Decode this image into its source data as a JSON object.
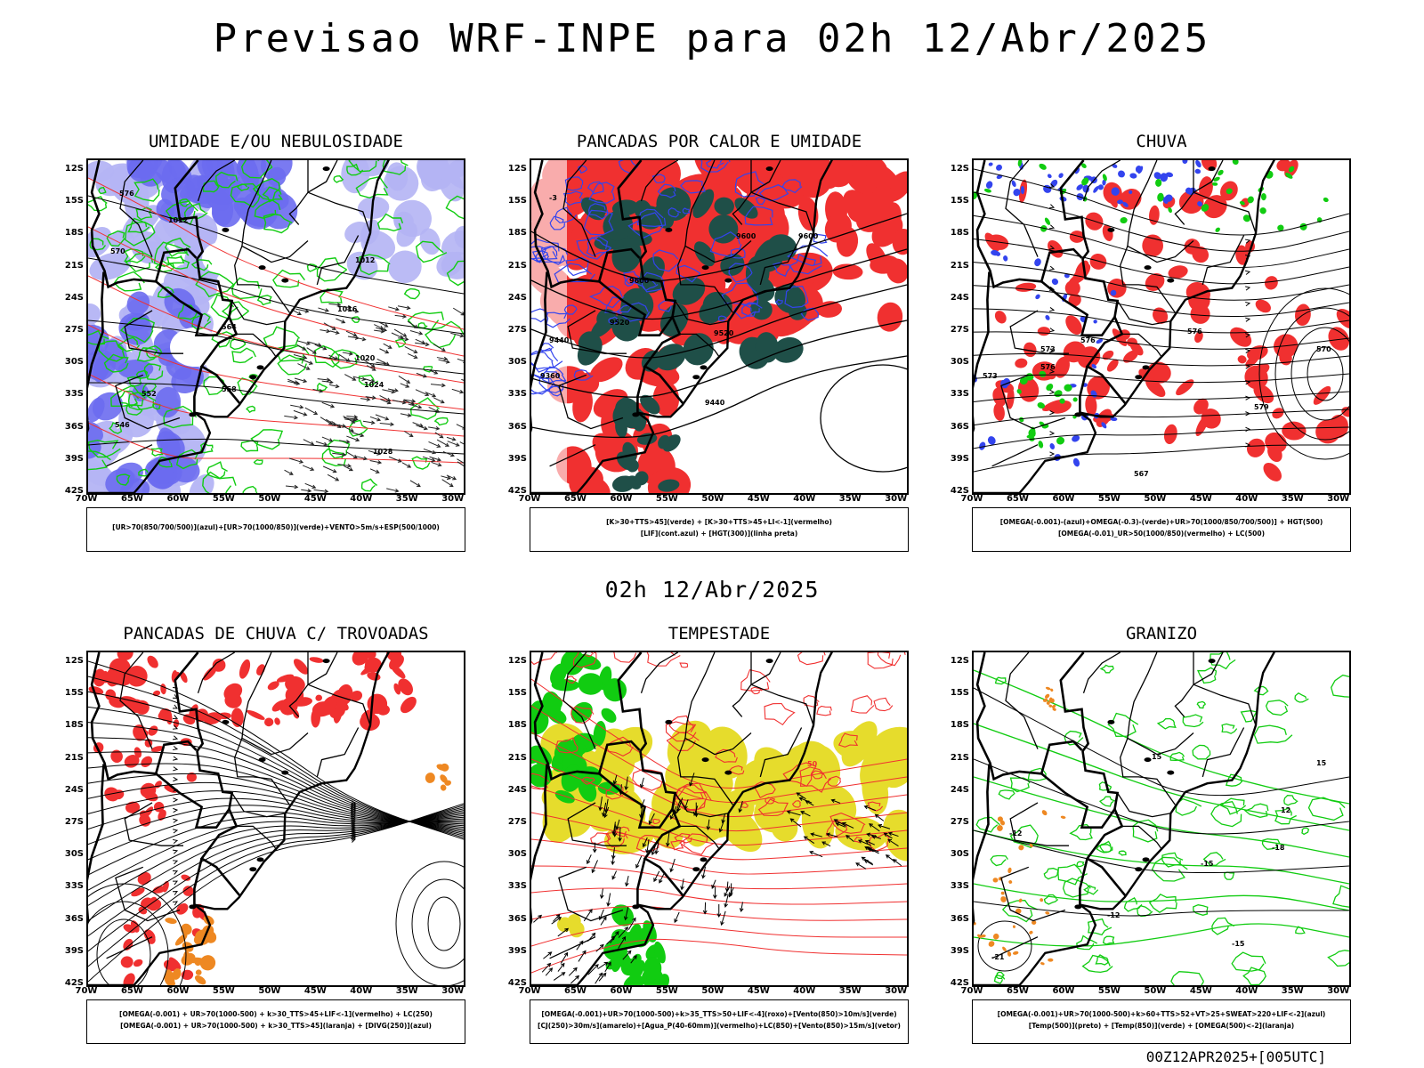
{
  "header": {
    "title": "Previsao WRF-INPE  para 02h 12/Abr/2025"
  },
  "mid_title": "02h 12/Abr/2025",
  "footer": "00Z12APR2025+[005UTC]",
  "axes": {
    "lat_labels": [
      "12S",
      "15S",
      "18S",
      "21S",
      "24S",
      "27S",
      "30S",
      "33S",
      "36S",
      "39S",
      "42S"
    ],
    "lon_labels": [
      "70W",
      "65W",
      "60W",
      "55W",
      "50W",
      "45W",
      "40W",
      "35W",
      "30W"
    ]
  },
  "panels": [
    {
      "id": "umidade",
      "title": "UMIDADE E/OU NEBULOSIDADE",
      "legend": [
        "[UR>70(850/700/500)](azul)+[UR>70(1000/850)](verde)+VENTO>5m/s+ESP(500/1000)"
      ],
      "contour_labels": [
        "1012",
        "1012",
        "1016",
        "1020",
        "1024",
        "1028",
        "576",
        "570",
        "564",
        "558",
        "552",
        "546"
      ]
    },
    {
      "id": "pancadas-calor",
      "title": "PANCADAS POR CALOR E UMIDADE",
      "legend": [
        "[K>30+TTS>45](verde) + [K>30+TTS>45+LI<-1](vermelho)",
        "[LIF](cont.azul) + [HGT(300)](linha preta)"
      ],
      "contour_labels": [
        "9600",
        "9600",
        "9600",
        "9520",
        "9520",
        "9440",
        "9440",
        "9360",
        "-3"
      ]
    },
    {
      "id": "chuva",
      "title": "CHUVA",
      "legend": [
        "[OMEGA(-0.001)-(azul)+OMEGA(-0.3)-(verde)+UR>70(1000/850/700/500)] + HGT(500)",
        "[OMEGA(-0.01)_UR>50(1000/850)(vermelho) + LC(500)"
      ],
      "contour_labels": [
        "576",
        "576",
        "573",
        "570",
        "579",
        "576",
        "573",
        "567"
      ]
    },
    {
      "id": "trovoadas",
      "title": "PANCADAS DE CHUVA C/ TROVOADAS",
      "legend": [
        "[OMEGA(-0.001) + UR>70(1000-500) + k>30_TTS>45+LIF<-1](vermelho) + LC(250)",
        "[OMEGA(-0.001) + UR>70(1000-500) + k>30_TTS>45](laranja) + [DIVG(250)](azul)"
      ],
      "contour_labels": []
    },
    {
      "id": "tempestade",
      "title": "TEMPESTADE",
      "legend": [
        "[OMEGA(-0.001)+UR>70(1000-500)+k>35_TTS>50+LIF<-4](roxo)+[Vento(850)>10m/s](verde)",
        "[CJ(250)>30m/s](amarelo)+[Agua_P(40-60mm)](vermelho)+LC(850)+[Vento(850)>15m/s](vetor)"
      ],
      "contour_labels": [
        "50"
      ]
    },
    {
      "id": "granizo",
      "title": "GRANIZO",
      "legend": [
        "[OMEGA(-0.001)+UR>70(1000-500)+k>60+TTS>52+VT>25+SWEAT>220+LIF<-2](azul)",
        "[Temp(500)](preto) + [Temp(850)](verde) + [OMEGA(500)<-2](laranja)"
      ],
      "contour_labels": [
        "-12",
        "-12",
        "-15",
        "-15",
        "-18",
        "-21",
        "15",
        "15",
        "12"
      ]
    }
  ],
  "colors": {
    "humid_blue": "#6c6cf0",
    "humid_light": "#b4b4f4",
    "green": "#11cc11",
    "red": "#f03030",
    "darkgreen": "#1f4f48",
    "blue_line": "#3344ee",
    "yellow": "#e6dc2c",
    "orange": "#ee8822",
    "black": "#000000"
  }
}
